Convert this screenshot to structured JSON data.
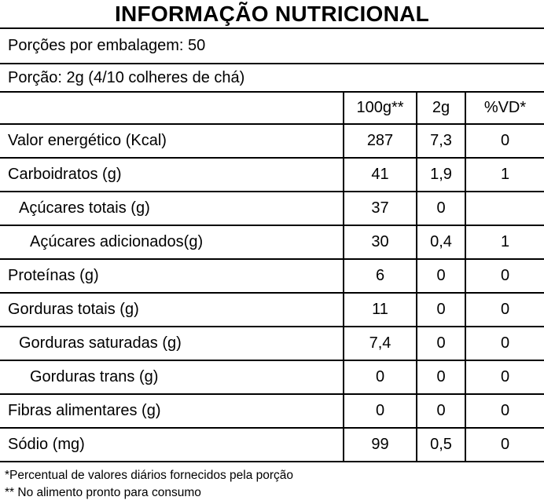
{
  "title": "INFORMAÇÃO NUTRICIONAL",
  "servings_line": "Porções por embalagem: 50",
  "portion_line": "Porção: 2g (4/10 colheres de chá)",
  "table": {
    "columns": {
      "per_100g": "100g**",
      "per_portion": "2g",
      "daily_value": "%VD*"
    },
    "rows": [
      {
        "label": "Valor energético (Kcal)",
        "per_100g": "287",
        "per_portion": "7,3",
        "daily_value": "0",
        "indent": 0
      },
      {
        "label": "Carboidratos (g)",
        "per_100g": "41",
        "per_portion": "1,9",
        "daily_value": "1",
        "indent": 0
      },
      {
        "label": "Açúcares totais (g)",
        "per_100g": "37",
        "per_portion": "0",
        "daily_value": "",
        "indent": 1
      },
      {
        "label": "Açúcares adicionados(g)",
        "per_100g": "30",
        "per_portion": "0,4",
        "daily_value": "1",
        "indent": 2
      },
      {
        "label": "Proteínas (g)",
        "per_100g": "6",
        "per_portion": "0",
        "daily_value": "0",
        "indent": 0
      },
      {
        "label": "Gorduras totais (g)",
        "per_100g": "11",
        "per_portion": "0",
        "daily_value": "0",
        "indent": 0
      },
      {
        "label": "Gorduras saturadas (g)",
        "per_100g": "7,4",
        "per_portion": "0",
        "daily_value": "0",
        "indent": 1
      },
      {
        "label": "Gorduras trans (g)",
        "per_100g": "0",
        "per_portion": "0",
        "daily_value": "0",
        "indent": 2
      },
      {
        "label": "Fibras alimentares (g)",
        "per_100g": "0",
        "per_portion": "0",
        "daily_value": "0",
        "indent": 0
      },
      {
        "label": "Sódio (mg)",
        "per_100g": "99",
        "per_portion": "0,5",
        "daily_value": "0",
        "indent": 0
      }
    ]
  },
  "footnotes": {
    "daily_value_note": "*Percentual de valores diários fornecidos pela porção",
    "prepared_food_note": "** No alimento pronto para consumo"
  },
  "colors": {
    "text": "#000000",
    "background": "#ffffff",
    "border": "#000000"
  }
}
